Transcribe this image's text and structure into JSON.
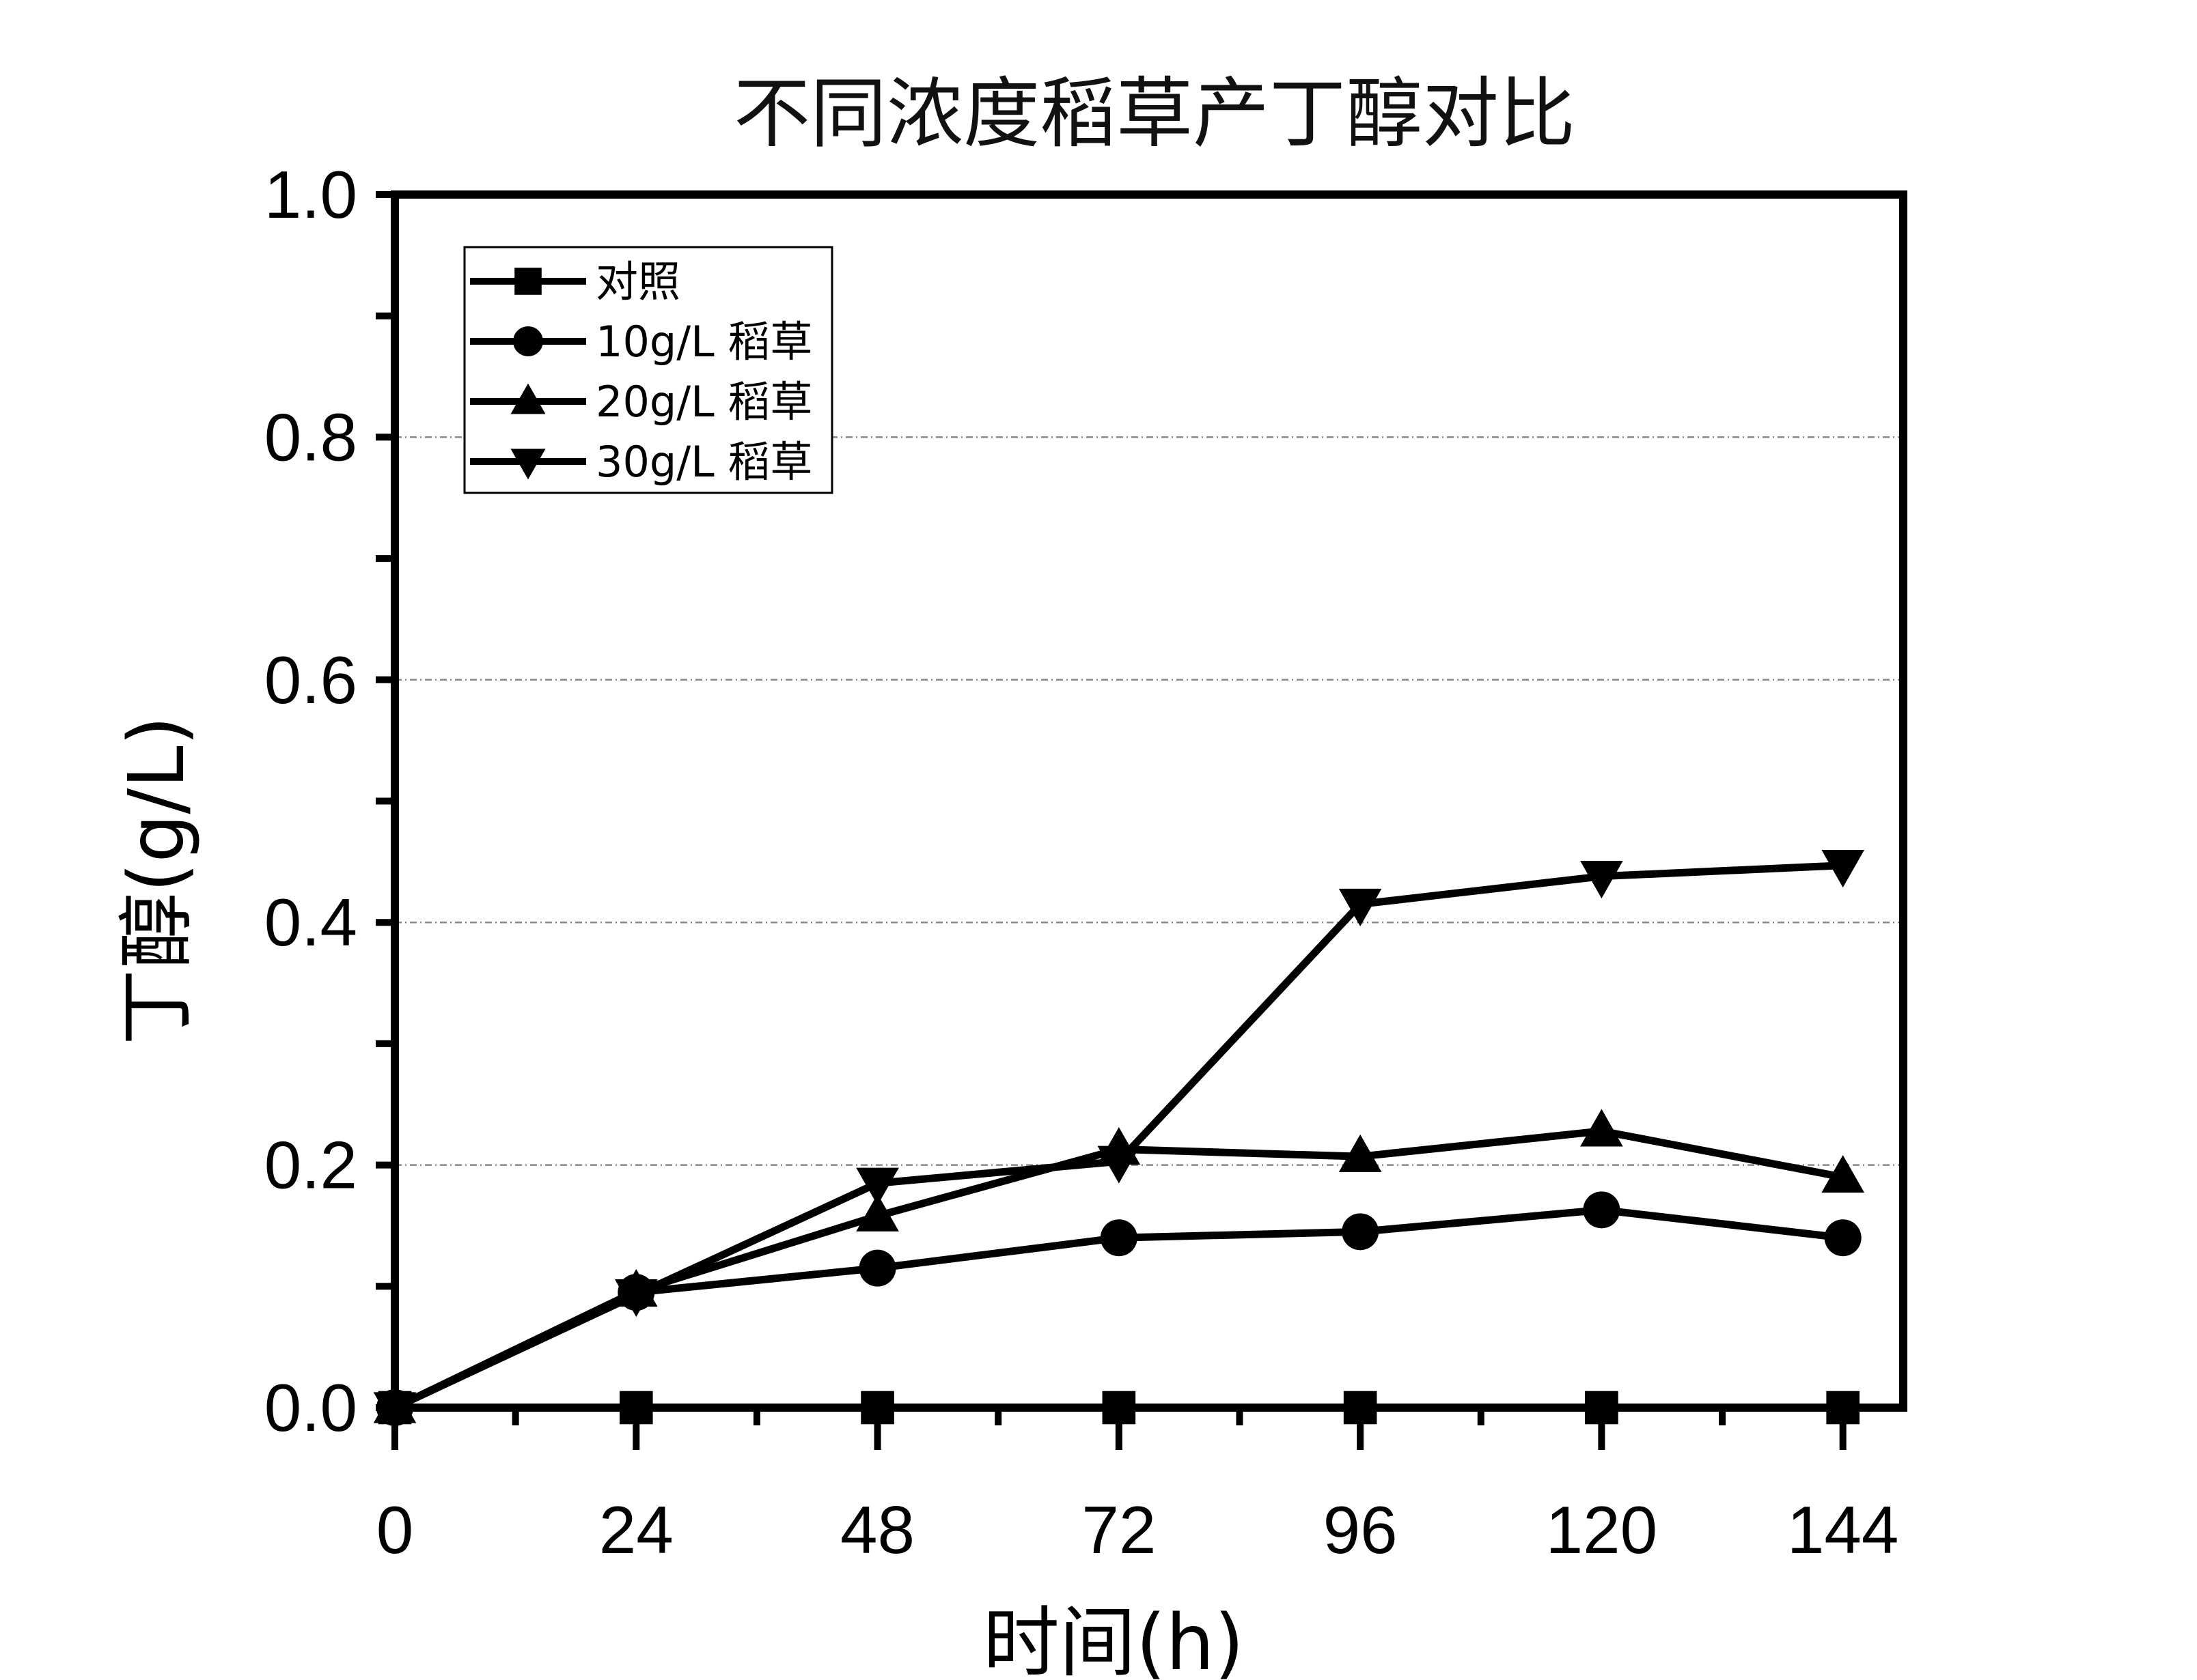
{
  "chart_data": {
    "type": "line",
    "title": "不同浓度稻草产丁醇对比",
    "xlabel": "时间(h)",
    "ylabel": "丁醇(g/L)",
    "x": [
      0,
      24,
      48,
      72,
      96,
      120,
      144
    ],
    "x_ticks": [
      "0",
      "24",
      "48",
      "72",
      "96",
      "120",
      "144"
    ],
    "y_ticks": [
      "0.0",
      "0.2",
      "0.4",
      "0.6",
      "0.8",
      "1.0"
    ],
    "xlim": [
      0,
      150
    ],
    "ylim": [
      0,
      1.0
    ],
    "grid": "horizontal dotted",
    "legend_position": "top-left",
    "series": [
      {
        "name": "对照",
        "marker": "square",
        "values": [
          0,
          0,
          0,
          0,
          0,
          0,
          0
        ]
      },
      {
        "name": "10g/L 稻草",
        "marker": "circle",
        "values": [
          0,
          0.095,
          0.115,
          0.14,
          0.145,
          0.163,
          0.14
        ]
      },
      {
        "name": "20g/L 稻草",
        "marker": "triangle-up",
        "values": [
          0,
          0.096,
          0.158,
          0.213,
          0.207,
          0.228,
          0.19
        ]
      },
      {
        "name": "30g/L 稻草",
        "marker": "triangle-down",
        "values": [
          0,
          0.093,
          0.185,
          0.203,
          0.415,
          0.438,
          0.447
        ]
      }
    ],
    "colors": {
      "line": "#000000",
      "grid": "#888888"
    }
  }
}
